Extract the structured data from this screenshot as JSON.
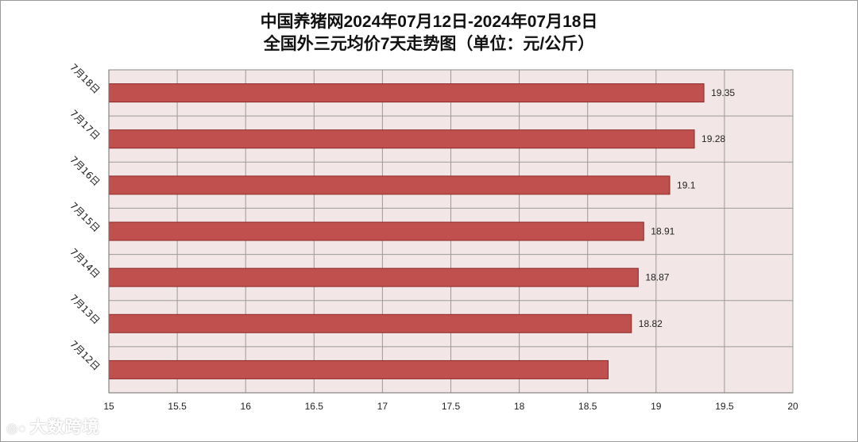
{
  "chart_data": {
    "type": "bar",
    "orientation": "horizontal",
    "title": "中国养猪网2024年07月12日-2024年07月18日",
    "subtitle": "全国外三元均价7天走势图（单位：元/公斤）",
    "categories": [
      "7月18日",
      "7月17日",
      "7月16日",
      "7月15日",
      "7月14日",
      "7月13日",
      "7月12日"
    ],
    "values": [
      19.35,
      19.28,
      19.1,
      18.91,
      18.87,
      18.82,
      18.65
    ],
    "data_labels": [
      "19.35",
      "19.28",
      "19.1",
      "18.91",
      "18.87",
      "18.82",
      ""
    ],
    "x_ticks": [
      "15",
      "15.5",
      "16",
      "16.5",
      "17",
      "17.5",
      "18",
      "18.5",
      "19",
      "19.5",
      "20"
    ],
    "xlim": [
      15,
      20
    ],
    "grid": true,
    "legend": "none",
    "bar_color": "#c0504d",
    "bar_edge_color": "#8c2a28",
    "plot_background": "#f2e6e6"
  },
  "watermark": {
    "text": "大数跨境",
    "icon": "logo-icon"
  }
}
